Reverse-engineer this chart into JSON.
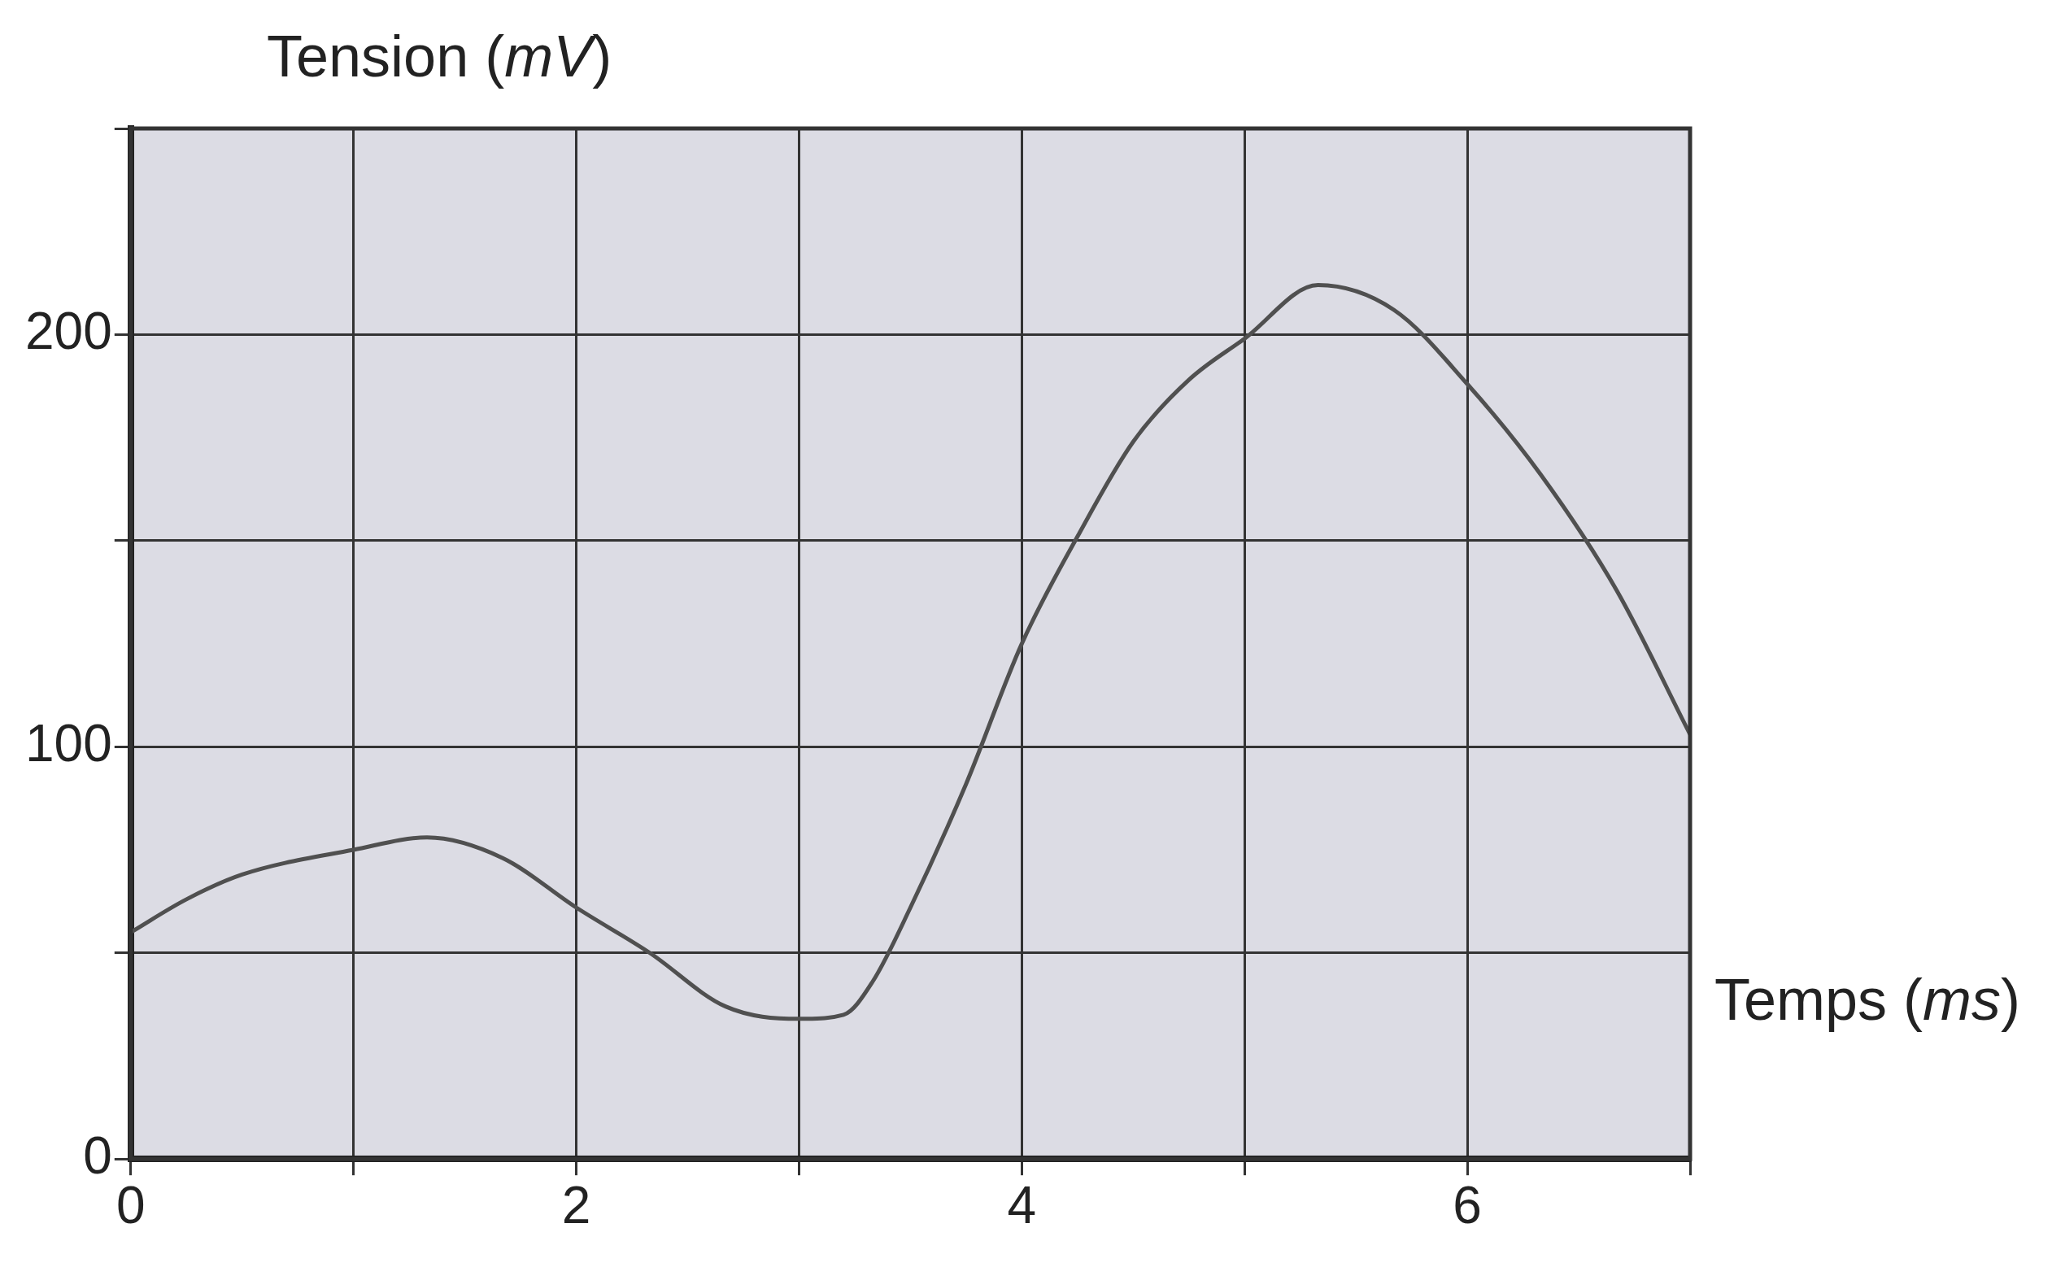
{
  "chart_data": {
    "type": "line",
    "xlabel": "Temps (ms)",
    "ylabel": "Tension (mV)",
    "x": [
      0,
      0.25,
      0.5,
      1,
      1.33,
      1.67,
      2,
      2.33,
      2.67,
      3,
      3.2,
      3.33,
      3.5,
      3.75,
      4,
      4.25,
      4.5,
      4.75,
      5,
      5.33,
      5.67,
      6,
      6.33,
      6.67,
      7
    ],
    "series": [
      {
        "color": "#505050",
        "values": [
          55,
          63,
          69,
          75,
          78,
          73,
          61,
          50,
          37,
          34,
          35,
          43,
          61,
          91,
          125,
          151,
          174,
          189,
          199,
          212,
          206,
          188,
          166,
          138,
          103
        ]
      }
    ],
    "xlim": [
      0,
      7
    ],
    "xticks": [
      0,
      {
        "value": 1,
        "label": null
      },
      2,
      {
        "value": 3,
        "label": null
      },
      4,
      {
        "value": 5,
        "label": null
      },
      6,
      {
        "value": 7,
        "label": null
      }
    ],
    "ylim": [
      0,
      250
    ],
    "yticks": [
      0,
      {
        "value": 50,
        "label": null
      },
      100,
      {
        "value": 150,
        "label": null
      },
      200,
      {
        "value": 250,
        "label": null
      }
    ],
    "grid": true,
    "legend": false,
    "marker": "none",
    "line_style": "solid"
  }
}
